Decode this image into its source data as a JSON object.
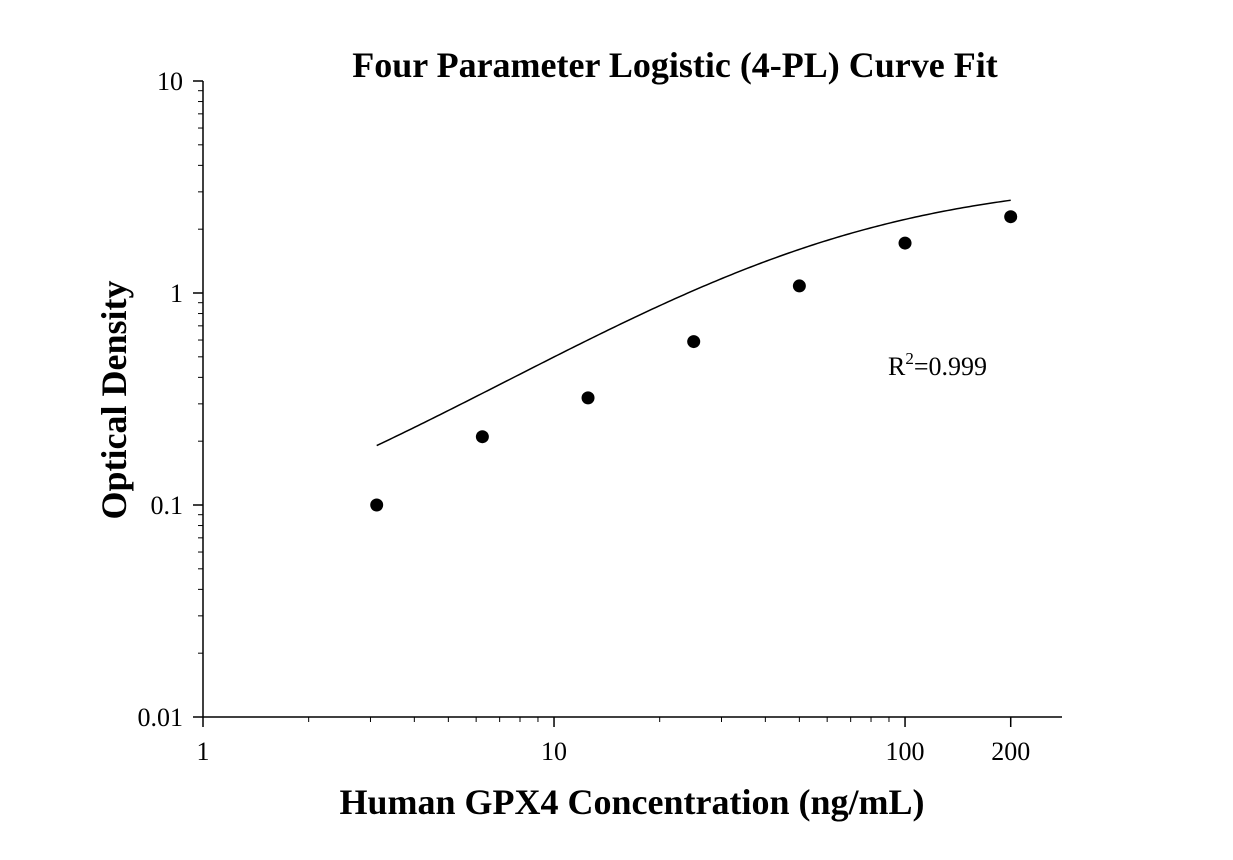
{
  "chart_data": {
    "type": "scatter",
    "title": "Four Parameter Logistic (4-PL) Curve Fit",
    "xlabel": "Human GPX4 Concentration (ng/mL)",
    "ylabel": "Optical Density",
    "x_scale": "log",
    "y_scale": "log",
    "xlim": [
      1,
      280
    ],
    "ylim": [
      0.01,
      10
    ],
    "x_ticks": [
      {
        "value": 1,
        "label": "1"
      },
      {
        "value": 10,
        "label": "10"
      },
      {
        "value": 100,
        "label": "100"
      },
      {
        "value": 200,
        "label": "200"
      }
    ],
    "y_ticks": [
      {
        "value": 10,
        "label": "10"
      },
      {
        "value": 1,
        "label": "1"
      },
      {
        "value": 0.1,
        "label": "0.1"
      },
      {
        "value": 0.01,
        "label": "0.01"
      }
    ],
    "grid": false,
    "series": [
      {
        "x": [
          3.125,
          6.25,
          12.5,
          25,
          50,
          100,
          200
        ],
        "y": [
          0.1,
          0.21,
          0.32,
          0.59,
          1.08,
          1.72,
          2.29
        ]
      }
    ],
    "fit": {
      "type": "4-PL",
      "x_range": [
        3.125,
        200
      ],
      "params": {
        "A": 0.042,
        "B": 1.05,
        "C": 60,
        "D": 3.5
      }
    },
    "annotation": {
      "base": "R",
      "sup": "2",
      "rest": "=0.999"
    },
    "colors": {
      "marker": "#000000",
      "axis": "#000000",
      "curve": "#000000"
    }
  }
}
